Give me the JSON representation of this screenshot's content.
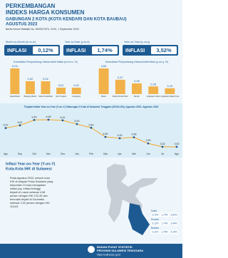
{
  "header": {
    "line1": "PERKEMBANGAN",
    "line2": "INDEKS HARGA KONSUMEN",
    "line3": "GABUNGAN 2 KOTA (KOTA KENDARI DAN KOTA BAUBAU)",
    "line4": "AGUSTUS 2023",
    "release": "Berita Resmi Statistik No. 59/09/74/Th. XXVI, 1 September 2023"
  },
  "kpis": [
    {
      "label": "Month-to-Month (m-to-m)",
      "status": "INFLASI",
      "value": "0,12%"
    },
    {
      "label": "Year-to-Date (y-to-d)",
      "status": "INFLASI",
      "value": "1,74%"
    },
    {
      "label": "Year-on-Year (y-on-y)",
      "status": "INFLASI",
      "value": "3,52%"
    }
  ],
  "chart_data": [
    {
      "type": "bar",
      "title": "Komoditas Penyumbang Utama Andil Inflasi (m-to-m, %)",
      "color": "#f2b24a",
      "categories": [
        "Cabai Rawit",
        "Bawang Merah",
        "Kelas Pendidikan",
        "Ikan Tongkol",
        "Kangkung"
      ],
      "values": [
        0.04,
        0.02,
        0.02,
        0.01,
        0.01
      ],
      "value_labels": [
        "0,04",
        "0,02",
        "0,02",
        "0,01",
        "0,01"
      ]
    },
    {
      "type": "bar",
      "title": "Komoditas Penyumbang Utama Andil Inflasi (y-on-y, %)",
      "color": "#f2b24a",
      "categories": [
        "Beras",
        "Rokok Kretek Filter",
        "Bensin",
        "Angkutan Udara",
        "Angkutan Dalam Kota"
      ],
      "values": [
        0.84,
        0.47,
        0.35,
        0.25,
        0.19
      ],
      "value_labels": [
        "0,84",
        "0,47",
        "0,35",
        "0,25",
        "0,19"
      ]
    },
    {
      "type": "line",
      "title": "Tingkat Inflasi Year-on-Year (Y-on-Y) Gabungan 2 Kota di Sulawesi Tenggara (2018=100), Agustus 2022–Agustus 2023",
      "color": "#f2b24a",
      "categories": [
        "Agu",
        "Sep",
        "Okt",
        "Nov",
        "Des",
        "Jan",
        "Feb",
        "Mar",
        "Apr",
        "Mei",
        "Jun",
        "Jul",
        "Agu"
      ],
      "values": [
        5.57,
        5.87,
        6.45,
        6.48,
        6.41,
        6.0,
        5.6,
        4.6,
        4.45,
        4.56,
        3.89,
        3.52,
        3.52
      ],
      "value_labels": [
        "5,57",
        "5,87",
        "6,45",
        "6,48",
        "6,41",
        "6,00",
        "5,60",
        "4,60",
        "4,45",
        "4,56",
        "3,89",
        "3,52",
        "3,52"
      ]
    }
  ],
  "map_section": {
    "title1": "Inflasi Year-on-Year (Y-on-Y)",
    "title2": "Kota-Kota IHK di Sulawesi",
    "text": "Pada Agustus 2023, seluruh kota IHK di wilayah Pulau Sulawesi yang berjumlah 13 kota mengalami inflasi yoy. Inflasi tertinggi terjadi di Luwuk sebesar 4,58 persen dengan IHK 122,45 dan terendah terjadi di Gorontalo sebesar 2,02 persen dengan IHK 113,63",
    "rows": [
      [
        "Sultra",
        "0,12%",
        "1,74%",
        "3,52%"
      ],
      [
        "Kendari",
        "0,12%",
        "1,74%",
        "3,44%"
      ],
      [
        "Baubau",
        "0,11%",
        "1,75%",
        "4,10%"
      ]
    ]
  },
  "footer": {
    "org1": "BADAN PUSAT STATISTIK",
    "org2": "PROVINSI SULAWESI TENGGARA",
    "url": "https://sultra.bps.go.id"
  }
}
